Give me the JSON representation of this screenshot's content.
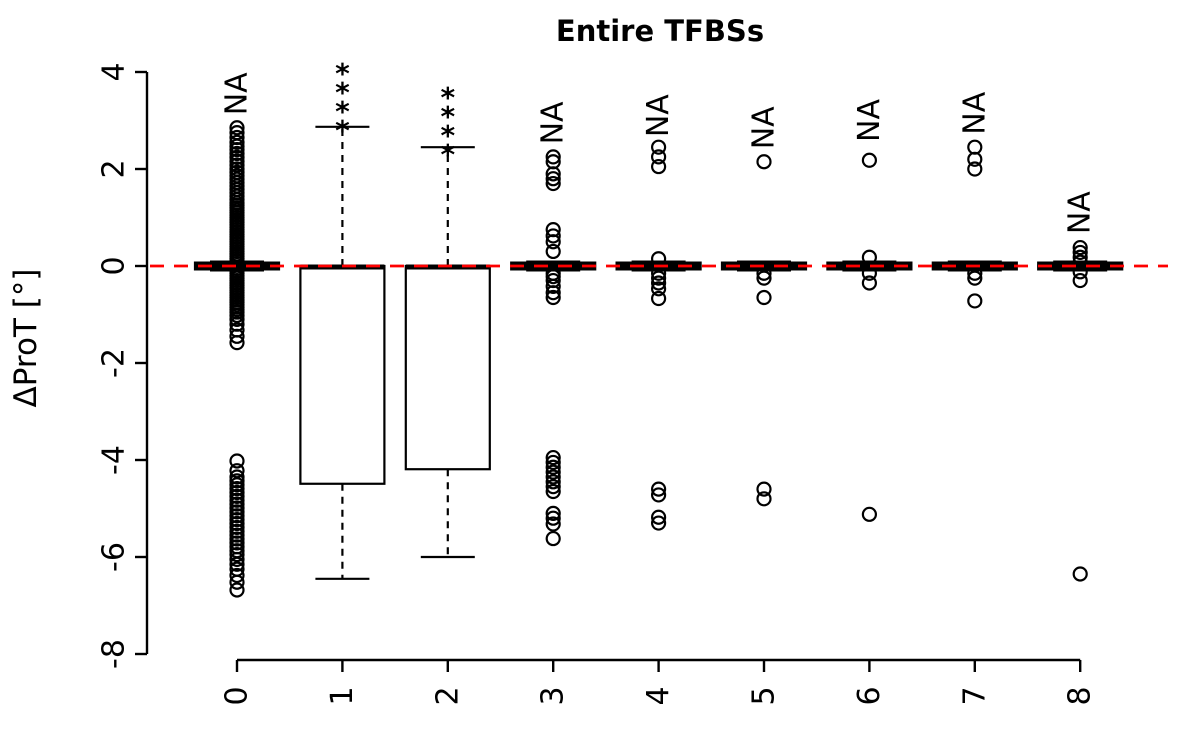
{
  "chart_data": {
    "type": "boxplot",
    "title": "Entire TFBSs",
    "ylabel": "ΔProT [°]",
    "xlabel": "",
    "ylim": [
      -8,
      4.3
    ],
    "y_ticks": [
      4,
      2,
      0,
      -2,
      -4,
      -6,
      -8
    ],
    "x_ticks": [
      "0",
      "1",
      "2",
      "3",
      "4",
      "5",
      "6",
      "7",
      "8"
    ],
    "grid": false,
    "legend": null,
    "reference_line": {
      "y": 0,
      "color": "#ff0000",
      "style": "dashed"
    },
    "boxes": [
      {
        "category": "0",
        "q1": -0.07,
        "median": 0,
        "q3": 0.07,
        "whisker_low": -0.09,
        "whisker_high": 0.09,
        "na_label": "NA",
        "na_y": 3.55,
        "significance": null,
        "sig_y": null,
        "outliers": [
          2.85,
          2.75,
          2.65,
          2.55,
          2.47,
          2.4,
          2.32,
          2.24,
          2.16,
          2.08,
          2.0,
          1.93,
          1.86,
          1.79,
          1.72,
          1.65,
          1.58,
          1.51,
          1.44,
          1.37,
          1.3,
          1.25,
          1.2,
          1.15,
          1.1,
          1.05,
          1.0,
          0.95,
          0.9,
          0.85,
          0.8,
          0.75,
          0.7,
          0.65,
          0.6,
          0.55,
          0.5,
          0.45,
          0.4,
          0.35,
          0.3,
          0.25,
          0.2,
          0.15,
          0.1,
          0.05,
          -0.05,
          -0.1,
          -0.15,
          -0.2,
          -0.25,
          -0.3,
          -0.35,
          -0.4,
          -0.45,
          -0.5,
          -0.55,
          -0.6,
          -0.65,
          -0.7,
          -0.75,
          -0.8,
          -0.85,
          -0.9,
          -0.95,
          -1.02,
          -1.1,
          -1.2,
          -1.32,
          -1.45,
          -1.58,
          -4.02,
          -4.22,
          -4.35,
          -4.43,
          -4.51,
          -4.59,
          -4.67,
          -4.75,
          -4.83,
          -4.91,
          -4.99,
          -5.07,
          -5.15,
          -5.23,
          -5.31,
          -5.39,
          -5.47,
          -5.55,
          -5.63,
          -5.71,
          -5.79,
          -5.87,
          -5.95,
          -6.05,
          -6.15,
          -6.25,
          -6.38,
          -6.52,
          -6.68
        ]
      },
      {
        "category": "1",
        "q1": -4.49,
        "median": -0.02,
        "q3": 0,
        "whisker_low": -6.45,
        "whisker_high": 2.87,
        "na_label": null,
        "na_y": null,
        "significance": "****",
        "sig_y": 3.6,
        "outliers": []
      },
      {
        "category": "2",
        "q1": -4.19,
        "median": -0.02,
        "q3": 0,
        "whisker_low": -6.0,
        "whisker_high": 2.45,
        "na_label": null,
        "na_y": null,
        "significance": "****",
        "sig_y": 3.1,
        "outliers": []
      },
      {
        "category": "3",
        "q1": -0.07,
        "median": 0,
        "q3": 0.07,
        "whisker_low": -0.09,
        "whisker_high": 0.09,
        "na_label": "NA",
        "na_y": 2.95,
        "significance": null,
        "sig_y": null,
        "outliers": [
          2.25,
          2.15,
          1.9,
          1.8,
          1.7,
          0.75,
          0.62,
          0.5,
          0.3,
          -0.15,
          -0.22,
          -0.3,
          -0.42,
          -0.55,
          -0.65,
          -3.95,
          -4.05,
          -4.15,
          -4.25,
          -4.35,
          -4.45,
          -4.55,
          -4.65,
          -5.1,
          -5.2,
          -5.32,
          -5.62
        ]
      },
      {
        "category": "4",
        "q1": -0.07,
        "median": 0,
        "q3": 0.07,
        "whisker_low": -0.09,
        "whisker_high": 0.09,
        "na_label": "NA",
        "na_y": 3.1,
        "significance": null,
        "sig_y": null,
        "outliers": [
          2.45,
          2.25,
          2.05,
          0.15,
          -0.15,
          -0.25,
          -0.35,
          -0.47,
          -0.67,
          -4.6,
          -4.72,
          -5.18,
          -5.3
        ]
      },
      {
        "category": "5",
        "q1": -0.07,
        "median": 0,
        "q3": 0.07,
        "whisker_low": -0.09,
        "whisker_high": 0.09,
        "na_label": "NA",
        "na_y": 2.85,
        "significance": null,
        "sig_y": null,
        "outliers": [
          2.15,
          -0.15,
          -0.25,
          -0.65,
          -4.6,
          -4.8
        ]
      },
      {
        "category": "6",
        "q1": -0.07,
        "median": 0,
        "q3": 0.07,
        "whisker_low": -0.09,
        "whisker_high": 0.09,
        "na_label": "NA",
        "na_y": 3.0,
        "significance": null,
        "sig_y": null,
        "outliers": [
          2.18,
          0.18,
          -0.15,
          -0.35,
          -5.12
        ]
      },
      {
        "category": "7",
        "q1": -0.07,
        "median": 0,
        "q3": 0.07,
        "whisker_low": -0.09,
        "whisker_high": 0.09,
        "na_label": "NA",
        "na_y": 3.15,
        "significance": null,
        "sig_y": null,
        "outliers": [
          2.45,
          2.2,
          2.0,
          -0.15,
          -0.25,
          -0.72
        ]
      },
      {
        "category": "8",
        "q1": -0.07,
        "median": 0,
        "q3": 0.07,
        "whisker_low": -0.09,
        "whisker_high": 0.09,
        "na_label": "NA",
        "na_y": 1.1,
        "significance": null,
        "sig_y": null,
        "outliers": [
          0.38,
          0.28,
          0.18,
          0.08,
          -0.12,
          -0.3,
          -6.35
        ]
      }
    ]
  }
}
